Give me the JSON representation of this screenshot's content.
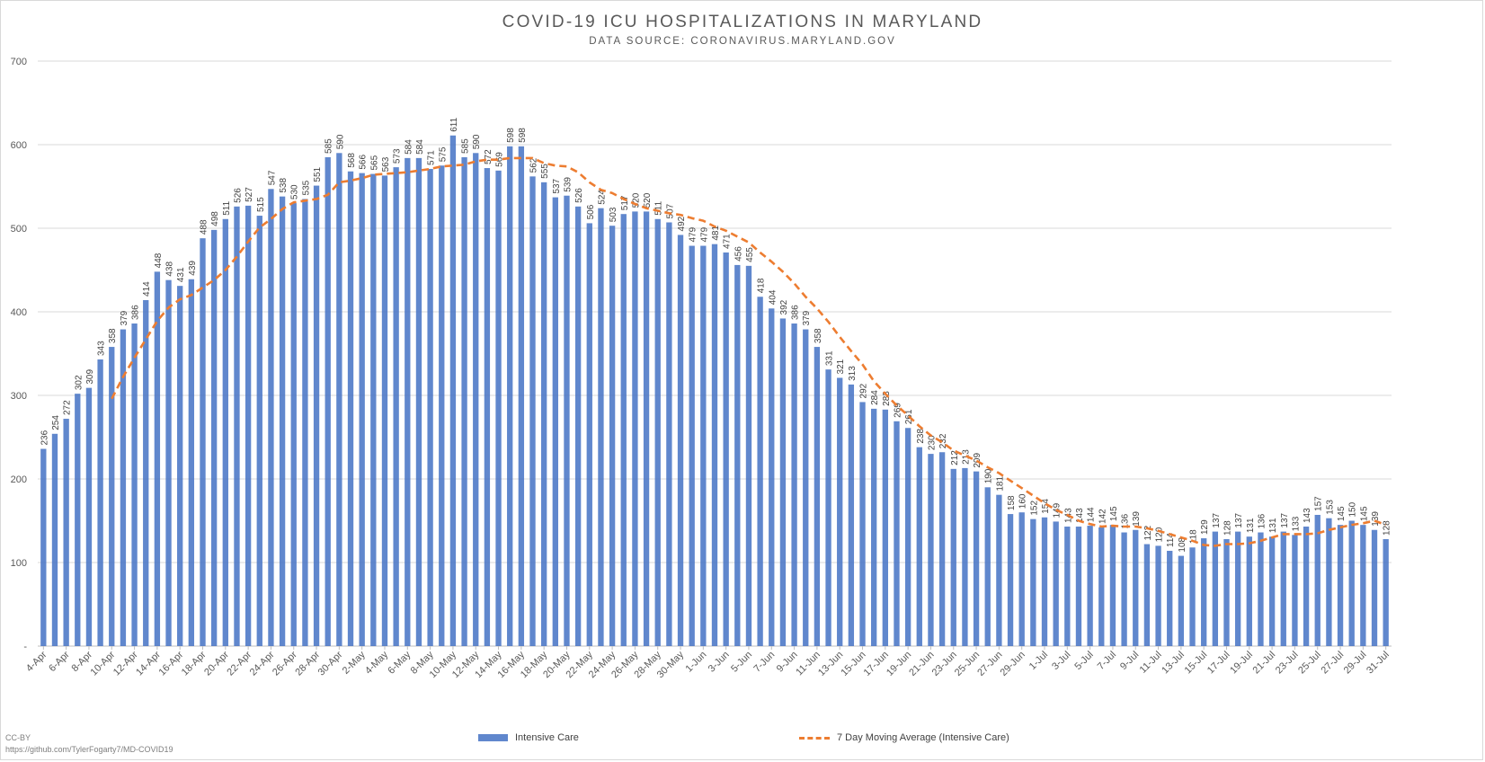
{
  "chart_data": {
    "type": "bar",
    "title": "COVID-19 ICU HOSPITALIZATIONS IN MARYLAND",
    "subtitle": "DATA SOURCE: CORONAVIRUS.MARYLAND.GOV",
    "x_start": "2020-04-04",
    "y_ticks": [
      "-",
      "100",
      "200",
      "300",
      "400",
      "500",
      "600",
      "700"
    ],
    "ylim": [
      0,
      700
    ],
    "grid": "horizontal",
    "legend_position": "bottom",
    "x_tick_labels": [
      "4-Apr",
      "6-Apr",
      "8-Apr",
      "10-Apr",
      "12-Apr",
      "14-Apr",
      "16-Apr",
      "18-Apr",
      "20-Apr",
      "22-Apr",
      "24-Apr",
      "26-Apr",
      "28-Apr",
      "30-Apr",
      "2-May",
      "4-May",
      "6-May",
      "8-May",
      "10-May",
      "12-May",
      "14-May",
      "16-May",
      "18-May",
      "20-May",
      "22-May",
      "24-May",
      "26-May",
      "28-May",
      "30-May",
      "1-Jun",
      "3-Jun",
      "5-Jun",
      "7-Jun",
      "9-Jun",
      "11-Jun",
      "13-Jun",
      "15-Jun",
      "17-Jun",
      "19-Jun",
      "21-Jun",
      "23-Jun",
      "25-Jun",
      "27-Jun",
      "29-Jun",
      "1-Jul",
      "3-Jul",
      "5-Jul",
      "7-Jul",
      "9-Jul",
      "11-Jul",
      "13-Jul",
      "15-Jul",
      "17-Jul",
      "19-Jul",
      "21-Jul",
      "23-Jul",
      "25-Jul",
      "27-Jul",
      "29-Jul",
      "31-Jul"
    ],
    "series": [
      {
        "name": "Intensive Care",
        "type": "bar",
        "color": "#4472c4",
        "values": [
          236,
          254,
          272,
          302,
          309,
          343,
          358,
          379,
          386,
          414,
          448,
          438,
          431,
          439,
          488,
          498,
          511,
          526,
          527,
          515,
          547,
          538,
          530,
          535,
          551,
          585,
          590,
          568,
          566,
          565,
          563,
          573,
          584,
          584,
          571,
          575,
          611,
          585,
          590,
          572,
          569,
          598,
          598,
          562,
          555,
          537,
          539,
          526,
          506,
          524,
          503,
          517,
          520,
          520,
          511,
          507,
          492,
          479,
          479,
          481,
          471,
          456,
          455,
          418,
          404,
          392,
          386,
          379,
          358,
          331,
          321,
          313,
          292,
          284,
          283,
          269,
          261,
          238,
          230,
          232,
          212,
          213,
          209,
          190,
          181,
          158,
          160,
          152,
          154,
          149,
          143,
          143,
          144,
          142,
          145,
          136,
          139,
          122,
          120,
          114,
          108,
          118,
          129,
          137,
          128,
          137,
          131,
          136,
          131,
          137,
          133,
          143,
          157,
          153,
          145,
          150,
          145,
          139,
          128
        ]
      },
      {
        "name": "7 Day Moving Average (Intensive Care)",
        "type": "line",
        "style": "dashed",
        "color": "#ed7d31",
        "values": [
          null,
          null,
          null,
          null,
          null,
          null,
          296,
          322,
          345,
          367,
          389,
          405,
          415,
          420,
          429,
          438,
          450,
          466,
          484,
          501,
          511,
          523,
          531,
          533,
          535,
          540,
          555,
          557,
          560,
          564,
          565,
          566,
          567,
          569,
          571,
          574,
          575,
          576,
          580,
          582,
          582,
          584,
          584,
          584,
          578,
          575,
          574,
          567,
          555,
          546,
          542,
          535,
          529,
          524,
          521,
          518,
          516,
          512,
          509,
          502,
          497,
          490,
          483,
          471,
          460,
          448,
          434,
          418,
          404,
          388,
          370,
          353,
          337,
          317,
          302,
          288,
          276,
          263,
          252,
          244,
          234,
          228,
          222,
          214,
          207,
          198,
          189,
          180,
          171,
          163,
          157,
          150,
          146,
          143,
          144,
          143,
          143,
          141,
          138,
          134,
          130,
          126,
          121,
          120,
          122,
          122,
          123,
          126,
          130,
          134,
          134,
          134,
          135,
          139,
          142,
          145,
          147,
          150,
          145
        ]
      }
    ]
  },
  "legend": {
    "bar_label": "Intensive Care",
    "line_label": "7 Day Moving Average (Intensive Care)"
  },
  "footer": {
    "license": "CC-BY",
    "url": "https://github.com/TylerFogarty7/MD-COVID19"
  }
}
